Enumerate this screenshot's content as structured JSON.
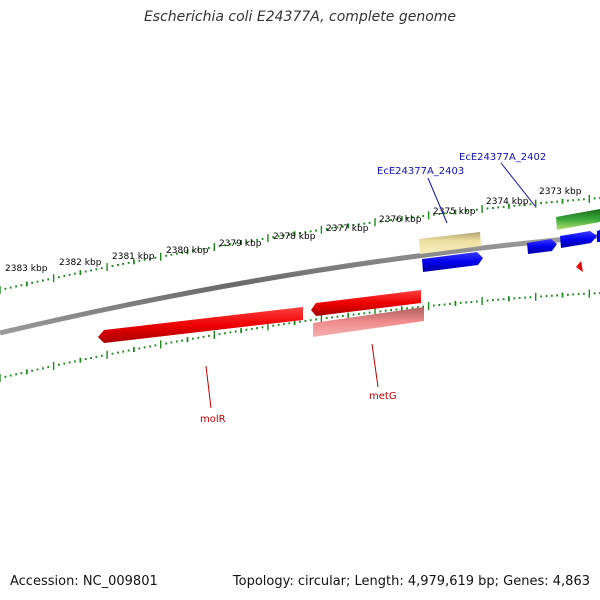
{
  "title": "Escherichia coli E24377A, complete genome",
  "footer": {
    "accession": "Accession: NC_009801",
    "summary": "Topology: circular; Length: 4,979,619 bp; Genes: 4,863"
  },
  "kbp_labels": [
    "2383 kbp",
    "2382 kbp",
    "2381 kbp",
    "2380 kbp",
    "2379 kbp",
    "2378 kbp",
    "2377 kbp",
    "2376 kbp",
    "2375 kbp",
    "2374 kbp",
    "2373 kbp"
  ],
  "gene_labels": {
    "ecE2403": "EcE24377A_2403",
    "ecE2402": "EcE24377A_2402",
    "molR": "molR",
    "metG": "metG"
  },
  "colors": {
    "backbone": "#7a7a7a",
    "ticks": "#1a8a1a",
    "feature_red": "#ee0000",
    "feature_pink": "#ec8080",
    "feature_blue": "#0000ee",
    "feature_yellow": "#e8dc90",
    "feature_green": "#2a9a2a",
    "label_blue": "#1010c0",
    "label_red": "#c00000"
  }
}
